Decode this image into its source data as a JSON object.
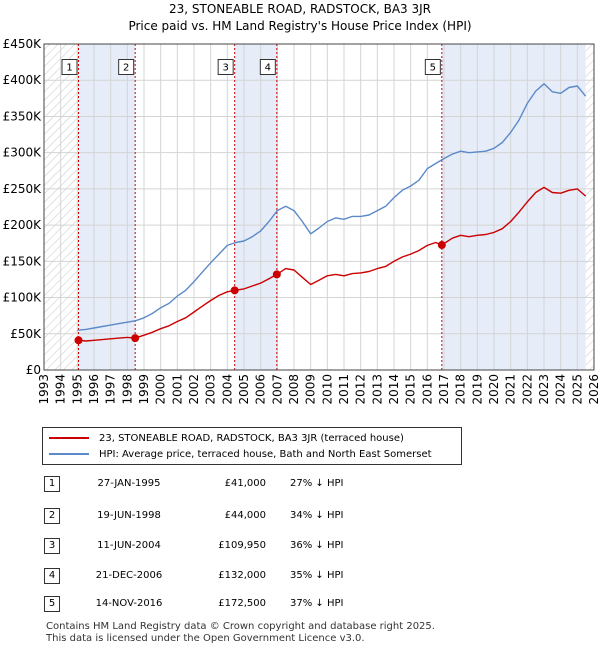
{
  "title_line1": "23, STONEABLE ROAD, RADSTOCK, BA3 3JR",
  "title_line2": "Price paid vs. HM Land Registry's House Price Index (HPI)",
  "colors": {
    "property": "#cc0000",
    "hpi": "#5b8ac9",
    "shade": "#e6ecf8",
    "grid": "#d4d4d4",
    "vline": "#cc0000"
  },
  "legend": {
    "property_label": "23, STONEABLE ROAD, RADSTOCK, BA3 3JR (terraced house)",
    "hpi_label": "HPI: Average price, terraced house, Bath and North East Somerset"
  },
  "transactions": [
    {
      "num": "1",
      "date": "27-JAN-1995",
      "price": "£41,000",
      "hpi": "27% ↓ HPI"
    },
    {
      "num": "2",
      "date": "19-JUN-1998",
      "price": "£44,000",
      "hpi": "34% ↓ HPI"
    },
    {
      "num": "3",
      "date": "11-JUN-2004",
      "price": "£109,950",
      "hpi": "36% ↓ HPI"
    },
    {
      "num": "4",
      "date": "21-DEC-2006",
      "price": "£132,000",
      "hpi": "35% ↓ HPI"
    },
    {
      "num": "5",
      "date": "14-NOV-2016",
      "price": "£172,500",
      "hpi": "37% ↓ HPI"
    }
  ],
  "footer": {
    "line1": "Contains HM Land Registry data © Crown copyright and database right 2025.",
    "line2": "This data is licensed under the Open Government Licence v3.0."
  },
  "chart_data": {
    "type": "line",
    "title": "23, STONEABLE ROAD, RADSTOCK, BA3 3JR",
    "subtitle": "Price paid vs. HM Land Registry's House Price Index (HPI)",
    "xlabel": "",
    "ylabel": "",
    "xlim": [
      1993,
      2026
    ],
    "ylim": [
      0,
      450000
    ],
    "x_ticks": [
      1993,
      1994,
      1995,
      1996,
      1997,
      1998,
      1999,
      2000,
      2001,
      2002,
      2003,
      2004,
      2005,
      2006,
      2007,
      2008,
      2009,
      2010,
      2011,
      2012,
      2013,
      2014,
      2015,
      2016,
      2017,
      2018,
      2019,
      2020,
      2021,
      2022,
      2023,
      2024,
      2025,
      2026
    ],
    "y_ticks": [
      {
        "value": 0,
        "label": "£0"
      },
      {
        "value": 50000,
        "label": "£50K"
      },
      {
        "value": 100000,
        "label": "£100K"
      },
      {
        "value": 150000,
        "label": "£150K"
      },
      {
        "value": 200000,
        "label": "£200K"
      },
      {
        "value": 250000,
        "label": "£250K"
      },
      {
        "value": 300000,
        "label": "£300K"
      },
      {
        "value": 350000,
        "label": "£350K"
      },
      {
        "value": 400000,
        "label": "£400K"
      },
      {
        "value": 450000,
        "label": "£450K"
      }
    ],
    "grid": true,
    "legend_position": "below",
    "shaded_spans": [
      [
        1995.07,
        1998.47
      ],
      [
        2004.44,
        2006.97
      ],
      [
        2016.87,
        2025.5
      ]
    ],
    "hatched_spans": [
      [
        1993,
        1995.07
      ],
      [
        2025.5,
        2026
      ]
    ],
    "sale_markers": [
      {
        "label": "1",
        "x": 1995.07,
        "y": 41000
      },
      {
        "label": "2",
        "x": 1998.47,
        "y": 44000
      },
      {
        "label": "3",
        "x": 2004.44,
        "y": 109950
      },
      {
        "label": "4",
        "x": 2006.97,
        "y": 132000
      },
      {
        "label": "5",
        "x": 2016.87,
        "y": 172500
      }
    ],
    "series": [
      {
        "name": "HPI: Average price, terraced house, Bath and North East Somerset",
        "color": "#5b8ac9",
        "x": [
          1995.0,
          1995.5,
          1996.0,
          1996.5,
          1997.0,
          1997.5,
          1998.0,
          1998.5,
          1999.0,
          1999.5,
          2000.0,
          2000.5,
          2001.0,
          2001.5,
          2002.0,
          2002.5,
          2003.0,
          2003.5,
          2004.0,
          2004.5,
          2005.0,
          2005.5,
          2006.0,
          2006.5,
          2007.0,
          2007.5,
          2008.0,
          2008.5,
          2009.0,
          2009.5,
          2010.0,
          2010.5,
          2011.0,
          2011.5,
          2012.0,
          2012.5,
          2013.0,
          2013.5,
          2014.0,
          2014.5,
          2015.0,
          2015.5,
          2016.0,
          2016.5,
          2017.0,
          2017.5,
          2018.0,
          2018.5,
          2019.0,
          2019.5,
          2020.0,
          2020.5,
          2021.0,
          2021.5,
          2022.0,
          2022.5,
          2023.0,
          2023.5,
          2024.0,
          2024.5,
          2025.0,
          2025.5
        ],
        "y": [
          55000,
          56000,
          58000,
          60000,
          62000,
          64000,
          66000,
          68000,
          72000,
          78000,
          86000,
          92000,
          102000,
          110000,
          122000,
          135000,
          148000,
          160000,
          172000,
          176000,
          178000,
          184000,
          192000,
          205000,
          220000,
          226000,
          220000,
          205000,
          188000,
          196000,
          205000,
          210000,
          208000,
          212000,
          212000,
          214000,
          220000,
          226000,
          238000,
          248000,
          254000,
          262000,
          278000,
          285000,
          292000,
          298000,
          302000,
          300000,
          301000,
          302000,
          306000,
          314000,
          328000,
          345000,
          368000,
          385000,
          395000,
          384000,
          382000,
          390000,
          392000,
          378000
        ]
      },
      {
        "name": "23, STONEABLE ROAD, RADSTOCK, BA3 3JR (terraced house)",
        "color": "#cc0000",
        "x": [
          1995.07,
          1995.5,
          1996.0,
          1996.5,
          1997.0,
          1997.5,
          1998.0,
          1998.47,
          1999.0,
          1999.5,
          2000.0,
          2000.5,
          2001.0,
          2001.5,
          2002.0,
          2002.5,
          2003.0,
          2003.5,
          2004.0,
          2004.44,
          2005.0,
          2005.5,
          2006.0,
          2006.5,
          2006.97,
          2007.5,
          2008.0,
          2008.5,
          2009.0,
          2009.5,
          2010.0,
          2010.5,
          2011.0,
          2011.5,
          2012.0,
          2012.5,
          2013.0,
          2013.5,
          2014.0,
          2014.5,
          2015.0,
          2015.5,
          2016.0,
          2016.5,
          2016.87,
          2017.5,
          2018.0,
          2018.5,
          2019.0,
          2019.5,
          2020.0,
          2020.5,
          2021.0,
          2021.5,
          2022.0,
          2022.5,
          2023.0,
          2023.5,
          2024.0,
          2024.5,
          2025.0,
          2025.5
        ],
        "y": [
          41000,
          40000,
          41000,
          42000,
          43000,
          44000,
          45000,
          44000,
          48000,
          52000,
          57000,
          61000,
          67000,
          72000,
          80000,
          88000,
          96000,
          103000,
          108000,
          109950,
          112000,
          116000,
          120000,
          126000,
          132000,
          140000,
          138000,
          128000,
          118000,
          124000,
          130000,
          132000,
          130000,
          133000,
          134000,
          136000,
          140000,
          143000,
          150000,
          156000,
          160000,
          165000,
          172000,
          176000,
          172500,
          182000,
          186000,
          184000,
          186000,
          187000,
          190000,
          195000,
          205000,
          218000,
          232000,
          245000,
          252000,
          245000,
          244000,
          248000,
          250000,
          240000
        ]
      }
    ]
  }
}
